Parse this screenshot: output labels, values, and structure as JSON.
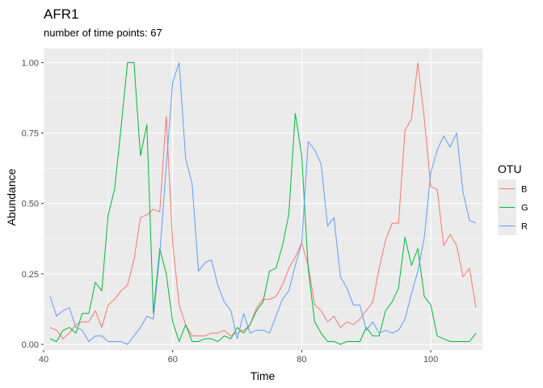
{
  "chart_data": {
    "type": "line",
    "title": "AFR1",
    "subtitle": "number of time points: 67",
    "xlabel": "Time",
    "ylabel": "Abundance",
    "xlim": [
      40,
      108
    ],
    "ylim": [
      -0.02,
      1.05
    ],
    "xticks": [
      40,
      60,
      80,
      100
    ],
    "yticks": [
      0.0,
      0.25,
      0.5,
      0.75,
      1.0
    ],
    "xtick_labels": [
      "40",
      "60",
      "80",
      "100"
    ],
    "ytick_labels": [
      "0.00",
      "0.25",
      "0.50",
      "0.75",
      "1.00"
    ],
    "grid": true,
    "legend": {
      "title": "OTU",
      "position": "right"
    },
    "x": [
      41,
      42,
      43,
      44,
      45,
      46,
      47,
      48,
      49,
      50,
      51,
      52,
      53,
      54,
      55,
      56,
      57,
      58,
      59,
      60,
      61,
      62,
      63,
      64,
      65,
      66,
      67,
      68,
      69,
      70,
      71,
      72,
      73,
      74,
      75,
      76,
      77,
      78,
      79,
      80,
      81,
      82,
      83,
      84,
      85,
      86,
      87,
      88,
      89,
      90,
      91,
      92,
      93,
      94,
      95,
      96,
      97,
      98,
      99,
      100,
      101,
      102,
      103,
      104,
      105,
      106,
      107
    ],
    "series": [
      {
        "name": "B",
        "color": "#F8766D",
        "values": [
          0.06,
          0.05,
          0.02,
          0.04,
          0.07,
          0.08,
          0.08,
          0.12,
          0.06,
          0.14,
          0.16,
          0.19,
          0.21,
          0.3,
          0.45,
          0.46,
          0.48,
          0.47,
          0.81,
          0.36,
          0.14,
          0.07,
          0.03,
          0.03,
          0.03,
          0.04,
          0.04,
          0.05,
          0.03,
          0.04,
          0.05,
          0.07,
          0.13,
          0.16,
          0.16,
          0.17,
          0.21,
          0.27,
          0.31,
          0.36,
          0.28,
          0.14,
          0.12,
          0.08,
          0.1,
          0.06,
          0.08,
          0.07,
          0.09,
          0.12,
          0.15,
          0.27,
          0.37,
          0.43,
          0.43,
          0.76,
          0.8,
          1.0,
          0.8,
          0.56,
          0.55,
          0.35,
          0.39,
          0.35,
          0.24,
          0.27,
          0.13
        ]
      },
      {
        "name": "G",
        "color": "#00BA38",
        "values": [
          0.02,
          0.01,
          0.05,
          0.06,
          0.04,
          0.11,
          0.11,
          0.22,
          0.19,
          0.46,
          0.55,
          0.77,
          1.0,
          1.0,
          0.67,
          0.78,
          0.11,
          0.34,
          0.25,
          0.08,
          0.01,
          0.07,
          0.01,
          0.01,
          0.02,
          0.02,
          0.01,
          0.03,
          0.02,
          0.06,
          0.04,
          0.07,
          0.12,
          0.15,
          0.26,
          0.27,
          0.35,
          0.46,
          0.82,
          0.67,
          0.27,
          0.08,
          0.04,
          0.01,
          0.01,
          0.0,
          0.01,
          0.01,
          0.01,
          0.06,
          0.03,
          0.03,
          0.12,
          0.15,
          0.2,
          0.38,
          0.28,
          0.34,
          0.17,
          0.14,
          0.03,
          0.02,
          0.01,
          0.01,
          0.01,
          0.01,
          0.04
        ]
      },
      {
        "name": "R",
        "color": "#619CFF",
        "values": [
          0.17,
          0.1,
          0.12,
          0.13,
          0.06,
          0.05,
          0.01,
          0.03,
          0.03,
          0.01,
          0.01,
          0.01,
          0.0,
          0.03,
          0.06,
          0.1,
          0.09,
          0.32,
          0.63,
          0.93,
          1.0,
          0.66,
          0.57,
          0.26,
          0.29,
          0.3,
          0.21,
          0.15,
          0.12,
          0.02,
          0.11,
          0.04,
          0.05,
          0.05,
          0.04,
          0.1,
          0.16,
          0.19,
          0.28,
          0.36,
          0.72,
          0.69,
          0.64,
          0.42,
          0.45,
          0.24,
          0.2,
          0.14,
          0.14,
          0.05,
          0.08,
          0.04,
          0.05,
          0.04,
          0.05,
          0.09,
          0.18,
          0.26,
          0.38,
          0.61,
          0.69,
          0.74,
          0.7,
          0.75,
          0.54,
          0.44,
          0.43
        ]
      }
    ]
  }
}
